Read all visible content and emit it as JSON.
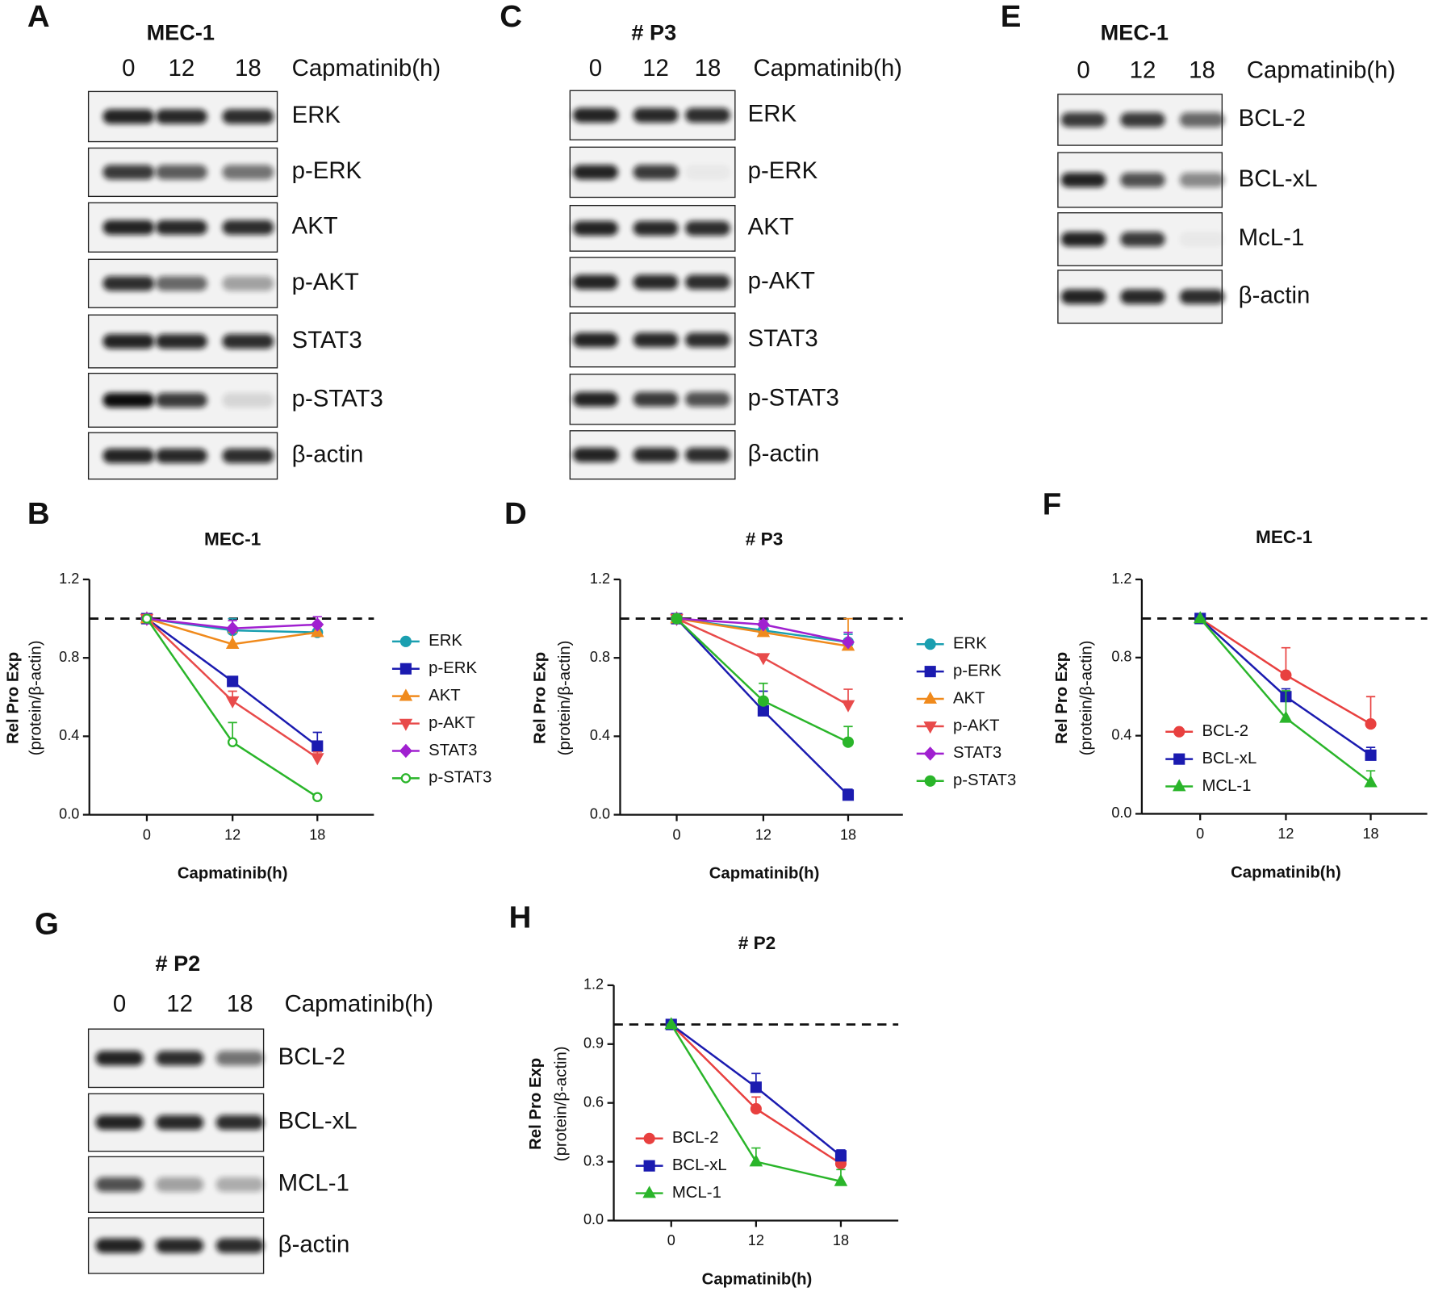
{
  "blots": [
    {
      "label": "A",
      "title": "MEC-1",
      "columns": [
        "0",
        "12",
        "18"
      ],
      "column_title": "Capmatinib(h)",
      "rows": [
        "ERK",
        "p-ERK",
        "AKT",
        "p-AKT",
        "STAT3",
        "p-STAT3",
        "β-actin"
      ]
    },
    {
      "label": "C",
      "title": "# P3",
      "columns": [
        "0",
        "12",
        "18"
      ],
      "column_title": "Capmatinib(h)",
      "rows": [
        "ERK",
        "p-ERK",
        "AKT",
        "p-AKT",
        "STAT3",
        "p-STAT3",
        "β-actin"
      ]
    },
    {
      "label": "E",
      "title": "MEC-1",
      "columns": [
        "0",
        "12",
        "18"
      ],
      "column_title": "Capmatinib(h)",
      "rows": [
        "BCL-2",
        "BCL-xL",
        "McL-1",
        "β-actin"
      ]
    },
    {
      "label": "G",
      "title": "# P2",
      "columns": [
        "0",
        "12",
        "18"
      ],
      "column_title": "Capmatinib(h)",
      "rows": [
        "BCL-2",
        "BCL-xL",
        "MCL-1",
        "β-actin"
      ]
    }
  ],
  "chart_data": [
    {
      "type": "line",
      "label": "B",
      "title": "MEC-1",
      "x_label": "Capmatinib(h)",
      "y_label": "Rel Pro Exp",
      "y_sublabel": "(protein/β-actin)",
      "categories": [
        "0",
        "12",
        "18"
      ],
      "ylim": [
        0,
        1.2
      ],
      "yticks": [
        {
          "value": 0,
          "label": "0.0"
        },
        0.4,
        0.8,
        1.2
      ],
      "ref_line": 1,
      "series": [
        {
          "name": "ERK",
          "color": "#1a9fb0",
          "marker": "circle",
          "values": [
            1,
            0.94,
            0.93
          ],
          "errors": [
            0,
            0.06,
            0.04
          ]
        },
        {
          "name": "p-ERK",
          "color": "#1b1bb0",
          "marker": "square",
          "values": [
            1,
            0.68,
            0.35
          ],
          "errors": [
            0,
            0.02,
            0.07
          ]
        },
        {
          "name": "AKT",
          "color": "#f08a1c",
          "marker": "triangle-up",
          "values": [
            1,
            0.87,
            0.93
          ],
          "errors": [
            0,
            0.06,
            0.03
          ]
        },
        {
          "name": "p-AKT",
          "color": "#e84a4a",
          "marker": "triangle-down",
          "values": [
            1,
            0.58,
            0.29
          ],
          "errors": [
            0,
            0.05,
            0.03
          ]
        },
        {
          "name": "STAT3",
          "color": "#a020d0",
          "marker": "diamond",
          "values": [
            1,
            0.95,
            0.97
          ],
          "errors": [
            0,
            0.04,
            0.04
          ]
        },
        {
          "name": "p-STAT3",
          "color": "#2ab52a",
          "marker": "open-circle",
          "values": [
            1,
            0.37,
            0.09
          ],
          "errors": [
            0,
            0.1,
            0.01
          ]
        }
      ]
    },
    {
      "type": "line",
      "label": "D",
      "title": "# P3",
      "x_label": "Capmatinib(h)",
      "y_label": "Rel Pro Exp",
      "y_sublabel": "(protein/β-actin)",
      "categories": [
        "0",
        "12",
        "18"
      ],
      "ylim": [
        0,
        1.2
      ],
      "yticks": [
        {
          "value": 0,
          "label": "0.0"
        },
        0.4,
        0.8,
        1.2
      ],
      "ref_line": 1,
      "series": [
        {
          "name": "ERK",
          "color": "#1a9fb0",
          "marker": "circle",
          "values": [
            1,
            0.94,
            0.88
          ],
          "errors": [
            0,
            0.04,
            0.04
          ]
        },
        {
          "name": "p-ERK",
          "color": "#1b1bb0",
          "marker": "square",
          "values": [
            1,
            0.53,
            0.1
          ],
          "errors": [
            0,
            0.1,
            0.03
          ]
        },
        {
          "name": "AKT",
          "color": "#f08a1c",
          "marker": "triangle-up",
          "values": [
            1,
            0.93,
            0.86
          ],
          "errors": [
            0,
            0.03,
            0.14
          ]
        },
        {
          "name": "p-AKT",
          "color": "#e84a4a",
          "marker": "triangle-down",
          "values": [
            1,
            0.8,
            0.56
          ],
          "errors": [
            0,
            0.02,
            0.08
          ]
        },
        {
          "name": "STAT3",
          "color": "#a020d0",
          "marker": "diamond",
          "values": [
            1,
            0.97,
            0.88
          ],
          "errors": [
            0,
            0.02,
            0.05
          ]
        },
        {
          "name": "p-STAT3",
          "color": "#2ab52a",
          "marker": "circle",
          "values": [
            1,
            0.58,
            0.37
          ],
          "errors": [
            0,
            0.09,
            0.08
          ]
        }
      ]
    },
    {
      "type": "line",
      "label": "F",
      "title": "MEC-1",
      "x_label": "Capmatinib(h)",
      "y_label": "Rel Pro Exp",
      "y_sublabel": "(protein/β-actin)",
      "categories": [
        "0",
        "12",
        "18"
      ],
      "ylim": [
        0,
        1.2
      ],
      "yticks": [
        {
          "value": 0,
          "label": "0.0"
        },
        0.4,
        0.8,
        1.2
      ],
      "ref_line": 1,
      "series": [
        {
          "name": "BCL-2",
          "color": "#e8403f",
          "marker": "circle",
          "values": [
            1,
            0.71,
            0.46
          ],
          "errors": [
            0,
            0.14,
            0.14
          ]
        },
        {
          "name": "BCL-xL",
          "color": "#1b1bb0",
          "marker": "square",
          "values": [
            1,
            0.6,
            0.3
          ],
          "errors": [
            0,
            0.04,
            0.04
          ]
        },
        {
          "name": "MCL-1",
          "color": "#2ab52a",
          "marker": "triangle-up",
          "values": [
            1,
            0.49,
            0.16
          ],
          "errors": [
            0,
            0.14,
            0.06
          ]
        }
      ]
    },
    {
      "type": "line",
      "label": "H",
      "title": "# P2",
      "x_label": "Capmatinib(h)",
      "y_label": "Rel Pro Exp",
      "y_sublabel": "(protein/β-actin)",
      "categories": [
        "0",
        "12",
        "18"
      ],
      "ylim": [
        0,
        1.2
      ],
      "yticks": [
        {
          "value": 0,
          "label": "0.0"
        },
        0.3,
        0.6,
        0.9,
        1.2
      ],
      "ref_line": 1,
      "series": [
        {
          "name": "BCL-2",
          "color": "#e8403f",
          "marker": "circle",
          "values": [
            1,
            0.57,
            0.29
          ],
          "errors": [
            0,
            0.06,
            0.04
          ]
        },
        {
          "name": "BCL-xL",
          "color": "#1b1bb0",
          "marker": "square",
          "values": [
            1,
            0.68,
            0.33
          ],
          "errors": [
            0,
            0.07,
            0.03
          ]
        },
        {
          "name": "MCL-1",
          "color": "#2ab52a",
          "marker": "triangle-up",
          "values": [
            1,
            0.3,
            0.2
          ],
          "errors": [
            0,
            0.07,
            0.06
          ]
        }
      ]
    }
  ]
}
